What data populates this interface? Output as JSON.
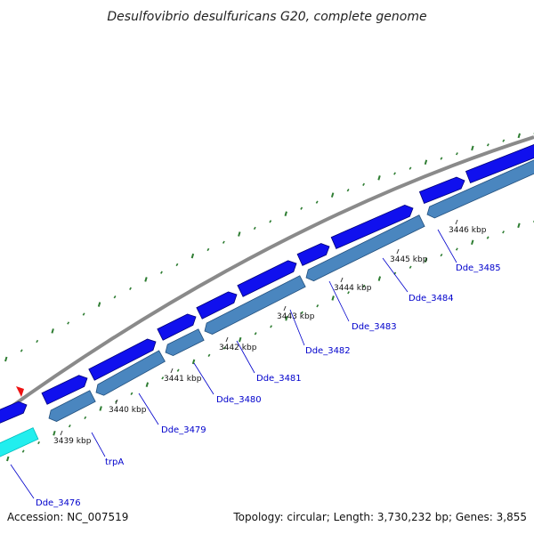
{
  "title": "Desulfovibrio desulfuricans G20, complete genome",
  "accession": "Accession: NC_007519",
  "summary": "Topology: circular; Length: 3,730,232 bp; Genes: 3,855",
  "colors": {
    "backbone": "#888888",
    "forward_gene": "#1010ee",
    "reverse_gene": "#4a86bf",
    "highlight_gene": "#22eeee",
    "tick": "#2e7d32",
    "label": "#0000cc",
    "marker": "#ee1111"
  },
  "kbp_labels": [
    "3439 kbp",
    "3440 kbp",
    "3441 kbp",
    "3442 kbp",
    "3443 kbp",
    "3444 kbp",
    "3445 kbp",
    "3446 kbp"
  ],
  "genes": [
    "Dde_3476",
    "trpA",
    "Dde_3479",
    "Dde_3480",
    "Dde_3481",
    "Dde_3482",
    "Dde_3483",
    "Dde_3484",
    "Dde_3485"
  ]
}
